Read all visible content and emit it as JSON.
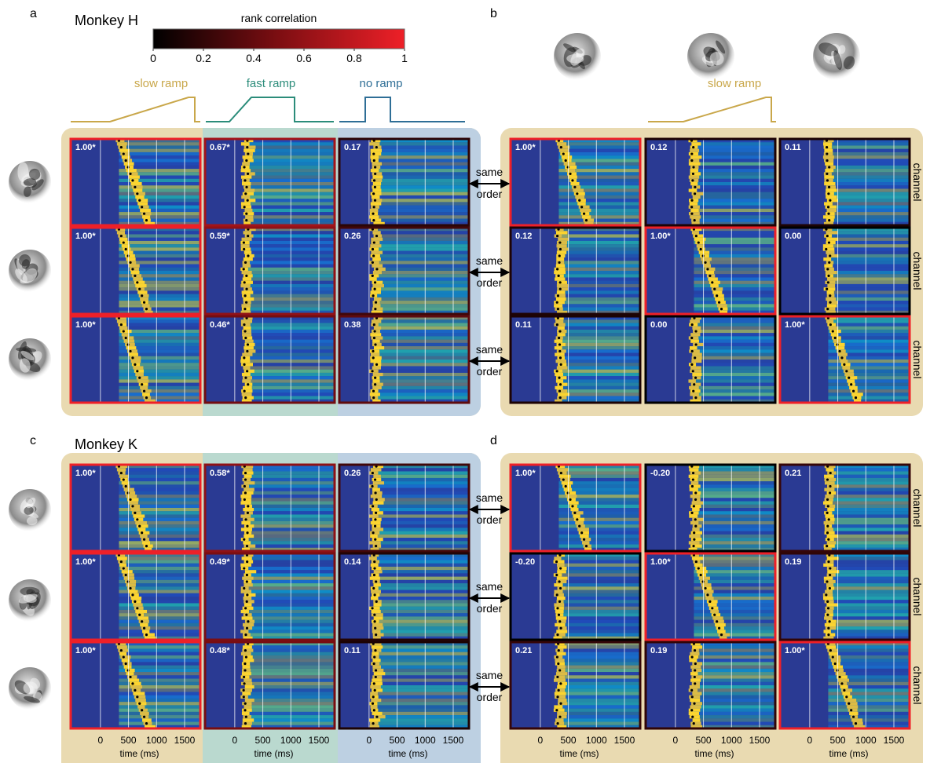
{
  "panels": {
    "a": {
      "letter": "a",
      "title": "Monkey H",
      "colorbar": {
        "label": "rank correlation",
        "ticks": [
          0,
          0.2,
          0.4,
          0.6,
          0.8,
          1
        ]
      },
      "conditions": [
        "slow ramp",
        "fast ramp",
        "no ramp"
      ],
      "cells": [
        [
          {
            "value": 1,
            "label": "1.00*"
          },
          {
            "value": 0.67,
            "label": "0.67*"
          },
          {
            "value": 0.17,
            "label": "0.17"
          }
        ],
        [
          {
            "value": 1,
            "label": "1.00*"
          },
          {
            "value": 0.59,
            "label": "0.59*"
          },
          {
            "value": 0.26,
            "label": "0.26"
          }
        ],
        [
          {
            "value": 1,
            "label": "1.00*"
          },
          {
            "value": 0.46,
            "label": "0.46*"
          },
          {
            "value": 0.38,
            "label": "0.38"
          }
        ]
      ]
    },
    "b": {
      "letter": "b",
      "conditions": [
        "slow ramp"
      ],
      "cells": [
        [
          {
            "value": 1,
            "label": "1.00*"
          },
          {
            "value": 0.12,
            "label": "0.12"
          },
          {
            "value": 0.11,
            "label": "0.11"
          }
        ],
        [
          {
            "value": 0.12,
            "label": "0.12"
          },
          {
            "value": 1,
            "label": "1.00*"
          },
          {
            "value": 0,
            "label": "0.00"
          }
        ],
        [
          {
            "value": 0.11,
            "label": "0.11"
          },
          {
            "value": 0,
            "label": "0.00"
          },
          {
            "value": 1,
            "label": "1.00*"
          }
        ]
      ]
    },
    "c": {
      "letter": "c",
      "title": "Monkey K",
      "cells": [
        [
          {
            "value": 1,
            "label": "1.00*"
          },
          {
            "value": 0.58,
            "label": "0.58*"
          },
          {
            "value": 0.26,
            "label": "0.26"
          }
        ],
        [
          {
            "value": 1,
            "label": "1.00*"
          },
          {
            "value": 0.49,
            "label": "0.49*"
          },
          {
            "value": 0.14,
            "label": "0.14"
          }
        ],
        [
          {
            "value": 1,
            "label": "1.00*"
          },
          {
            "value": 0.48,
            "label": "0.48*"
          },
          {
            "value": 0.11,
            "label": "0.11"
          }
        ]
      ]
    },
    "d": {
      "letter": "d",
      "cells": [
        [
          {
            "value": 1,
            "label": "1.00*"
          },
          {
            "value": -0.2,
            "label": "-0.20"
          },
          {
            "value": 0.21,
            "label": "0.21"
          }
        ],
        [
          {
            "value": -0.2,
            "label": "-0.20"
          },
          {
            "value": 1,
            "label": "1.00*"
          },
          {
            "value": 0.19,
            "label": "0.19"
          }
        ],
        [
          {
            "value": 0.21,
            "label": "0.21"
          },
          {
            "value": 0.19,
            "label": "0.19"
          },
          {
            "value": 1,
            "label": "1.00*"
          }
        ]
      ]
    }
  },
  "link_label": [
    "same",
    "order"
  ],
  "row_label": "channel",
  "time_axis": {
    "label": "time (ms)",
    "ticks": [
      0,
      500,
      1000,
      1500
    ],
    "xlim": [
      -530,
      1780
    ]
  }
}
